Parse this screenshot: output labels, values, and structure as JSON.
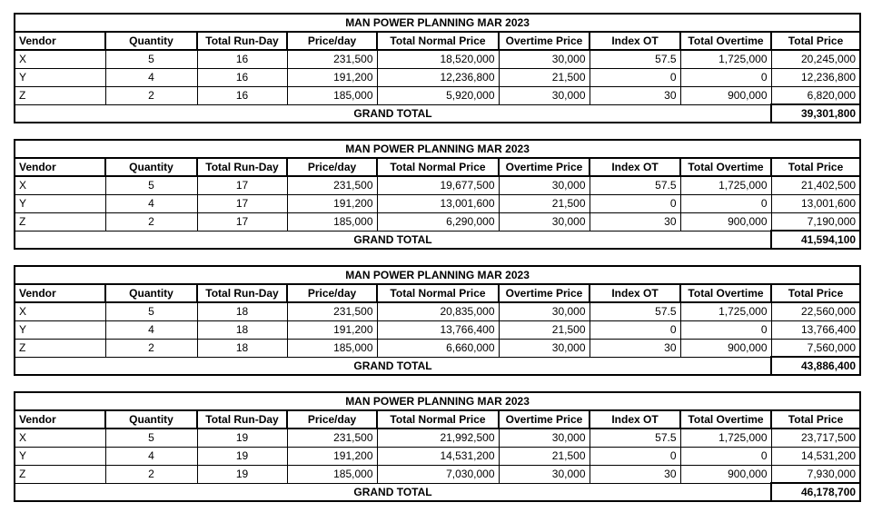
{
  "title": "MAN POWER PLANNING MAR 2023",
  "grand_total_label": "GRAND TOTAL",
  "columns": [
    "Vendor",
    "Quantity",
    "Total Run-Day",
    "Price/day",
    "Total Normal Price",
    "Overtime Price",
    "Index OT",
    "Total Overtime",
    "Total Price"
  ],
  "column_alignments": [
    "left",
    "center",
    "center",
    "right",
    "right",
    "right",
    "right",
    "right",
    "right"
  ],
  "colors": {
    "border": "#000000",
    "text": "#000000",
    "background": "#ffffff"
  },
  "tables": [
    {
      "rows": [
        [
          "X",
          "5",
          "16",
          "231,500",
          "18,520,000",
          "30,000",
          "57.5",
          "1,725,000",
          "20,245,000"
        ],
        [
          "Y",
          "4",
          "16",
          "191,200",
          "12,236,800",
          "21,500",
          "0",
          "0",
          "12,236,800"
        ],
        [
          "Z",
          "2",
          "16",
          "185,000",
          "5,920,000",
          "30,000",
          "30",
          "900,000",
          "6,820,000"
        ]
      ],
      "grand_total": "39,301,800"
    },
    {
      "rows": [
        [
          "X",
          "5",
          "17",
          "231,500",
          "19,677,500",
          "30,000",
          "57.5",
          "1,725,000",
          "21,402,500"
        ],
        [
          "Y",
          "4",
          "17",
          "191,200",
          "13,001,600",
          "21,500",
          "0",
          "0",
          "13,001,600"
        ],
        [
          "Z",
          "2",
          "17",
          "185,000",
          "6,290,000",
          "30,000",
          "30",
          "900,000",
          "7,190,000"
        ]
      ],
      "grand_total": "41,594,100"
    },
    {
      "rows": [
        [
          "X",
          "5",
          "18",
          "231,500",
          "20,835,000",
          "30,000",
          "57.5",
          "1,725,000",
          "22,560,000"
        ],
        [
          "Y",
          "4",
          "18",
          "191,200",
          "13,766,400",
          "21,500",
          "0",
          "0",
          "13,766,400"
        ],
        [
          "Z",
          "2",
          "18",
          "185,000",
          "6,660,000",
          "30,000",
          "30",
          "900,000",
          "7,560,000"
        ]
      ],
      "grand_total": "43,886,400"
    },
    {
      "rows": [
        [
          "X",
          "5",
          "19",
          "231,500",
          "21,992,500",
          "30,000",
          "57.5",
          "1,725,000",
          "23,717,500"
        ],
        [
          "Y",
          "4",
          "19",
          "191,200",
          "14,531,200",
          "21,500",
          "0",
          "0",
          "14,531,200"
        ],
        [
          "Z",
          "2",
          "19",
          "185,000",
          "7,030,000",
          "30,000",
          "30",
          "900,000",
          "7,930,000"
        ]
      ],
      "grand_total": "46,178,700"
    }
  ]
}
